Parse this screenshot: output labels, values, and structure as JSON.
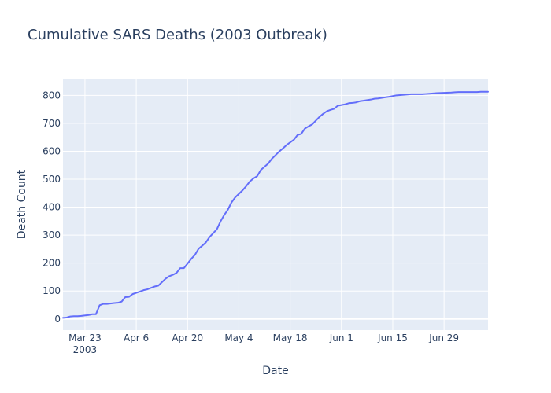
{
  "chart_data": {
    "type": "line",
    "title": "Cumulative SARS Deaths (2003 Outbreak)",
    "xlabel": "Date",
    "ylabel": "Death Count",
    "xlim": [
      "2003-03-17",
      "2003-07-11"
    ],
    "ylim": [
      -40,
      860
    ],
    "x_ticks": [
      {
        "date": "2003-03-23",
        "label": "Mar 23",
        "sublabel": "2003"
      },
      {
        "date": "2003-04-06",
        "label": "Apr 6"
      },
      {
        "date": "2003-04-20",
        "label": "Apr 20"
      },
      {
        "date": "2003-05-04",
        "label": "May 4"
      },
      {
        "date": "2003-05-18",
        "label": "May 18"
      },
      {
        "date": "2003-06-01",
        "label": "Jun 1"
      },
      {
        "date": "2003-06-15",
        "label": "Jun 15"
      },
      {
        "date": "2003-06-29",
        "label": "Jun 29"
      }
    ],
    "y_ticks": [
      0,
      100,
      200,
      300,
      400,
      500,
      600,
      700,
      800
    ],
    "grid": true,
    "colors": {
      "line": "#636efa",
      "plot_bg": "#e5ecf6",
      "grid": "#ffffff",
      "text": "#2a3f5f"
    },
    "series": [
      {
        "x": [
          "2003-03-17",
          "2003-03-18",
          "2003-03-19",
          "2003-03-20",
          "2003-03-21",
          "2003-03-22",
          "2003-03-24",
          "2003-03-25",
          "2003-03-26",
          "2003-03-27",
          "2003-03-28",
          "2003-03-29",
          "2003-03-31",
          "2003-04-01",
          "2003-04-02",
          "2003-04-03",
          "2003-04-04",
          "2003-04-05",
          "2003-04-07",
          "2003-04-08",
          "2003-04-09",
          "2003-04-10",
          "2003-04-11",
          "2003-04-12",
          "2003-04-14",
          "2003-04-15",
          "2003-04-16",
          "2003-04-17",
          "2003-04-18",
          "2003-04-19",
          "2003-04-21",
          "2003-04-22",
          "2003-04-23",
          "2003-04-24",
          "2003-04-25",
          "2003-04-26",
          "2003-04-28",
          "2003-04-29",
          "2003-04-30",
          "2003-05-01",
          "2003-05-02",
          "2003-05-03",
          "2003-05-05",
          "2003-05-06",
          "2003-05-07",
          "2003-05-08",
          "2003-05-09",
          "2003-05-10",
          "2003-05-12",
          "2003-05-13",
          "2003-05-14",
          "2003-05-15",
          "2003-05-16",
          "2003-05-17",
          "2003-05-19",
          "2003-05-20",
          "2003-05-21",
          "2003-05-22",
          "2003-05-23",
          "2003-05-24",
          "2003-05-26",
          "2003-05-27",
          "2003-05-28",
          "2003-05-29",
          "2003-05-30",
          "2003-05-31",
          "2003-06-02",
          "2003-06-03",
          "2003-06-04",
          "2003-06-05",
          "2003-06-06",
          "2003-06-07",
          "2003-06-09",
          "2003-06-10",
          "2003-06-11",
          "2003-06-12",
          "2003-06-13",
          "2003-06-14",
          "2003-06-16",
          "2003-06-17",
          "2003-06-18",
          "2003-06-19",
          "2003-06-20",
          "2003-06-23",
          "2003-06-24",
          "2003-06-25",
          "2003-06-26",
          "2003-06-27",
          "2003-07-01",
          "2003-07-02",
          "2003-07-03",
          "2003-07-04",
          "2003-07-07",
          "2003-07-08",
          "2003-07-09",
          "2003-07-10",
          "2003-07-11"
        ],
        "y": [
          4,
          5,
          9,
          10,
          10,
          11,
          14,
          17,
          17,
          49,
          54,
          54,
          57,
          58,
          62,
          78,
          79,
          89,
          98,
          103,
          106,
          111,
          116,
          119,
          144,
          153,
          158,
          165,
          182,
          182,
          215,
          229,
          251,
          262,
          274,
          293,
          321,
          349,
          372,
          391,
          417,
          435,
          460,
          475,
          492,
          503,
          511,
          533,
          556,
          573,
          586,
          599,
          610,
          622,
          641,
          658,
          662,
          681,
          689,
          696,
          723,
          734,
          743,
          748,
          752,
          763,
          768,
          772,
          773,
          775,
          779,
          781,
          785,
          788,
          789,
          791,
          793,
          795,
          800,
          801,
          802,
          803,
          804,
          804,
          805,
          806,
          807,
          808,
          810,
          811,
          812,
          812,
          812,
          812,
          813,
          813,
          813
        ]
      }
    ]
  }
}
